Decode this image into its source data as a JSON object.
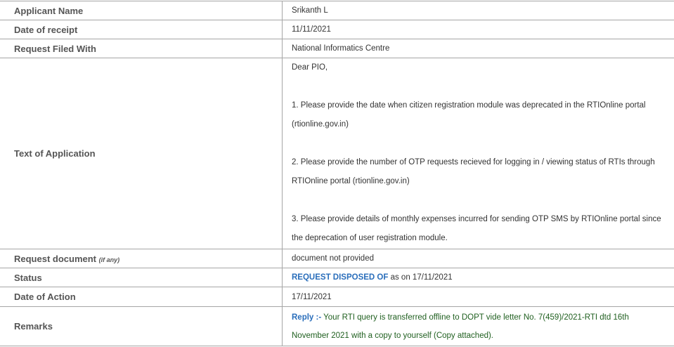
{
  "rows": {
    "applicant_name": {
      "label": "Applicant Name",
      "value": "Srikanth L"
    },
    "date_of_receipt": {
      "label": "Date of receipt",
      "value": "11/11/2021"
    },
    "request_filed_with": {
      "label": "Request Filed With",
      "value": "National Informatics Centre"
    },
    "text_of_application": {
      "label": "Text of Application",
      "paragraphs": [
        "Dear PIO,",
        "1. Please provide the date when citizen registration module was deprecated in the RTIOnline portal (rtionline.gov.in)",
        "2. Please provide the number of OTP requests recieved for logging in / viewing status of RTIs through RTIOnline portal (rtionline.gov.in)",
        "3. Please provide details of monthly expenses incurred for sending OTP SMS by RTIOnline portal since the deprecation of user registration module."
      ]
    },
    "request_document": {
      "label": "Request document",
      "label_note": "(if any)",
      "value": "document not provided"
    },
    "status": {
      "label": "Status",
      "status_text": "REQUEST DISPOSED OF",
      "suffix": "as on 17/11/2021"
    },
    "date_of_action": {
      "label": "Date of Action",
      "value": "17/11/2021"
    },
    "remarks": {
      "label": "Remarks",
      "reply_label": "Reply :-",
      "text": "Your RTI query is transferred offline to DOPT vide letter No. 7(459)/2021-RTI dtd 16th November 2021 with a copy to yourself (Copy attached)."
    }
  },
  "colors": {
    "status_blue": "#2a6ebb",
    "remarks_green": "#1f5f1f",
    "label_gray": "#555555"
  }
}
